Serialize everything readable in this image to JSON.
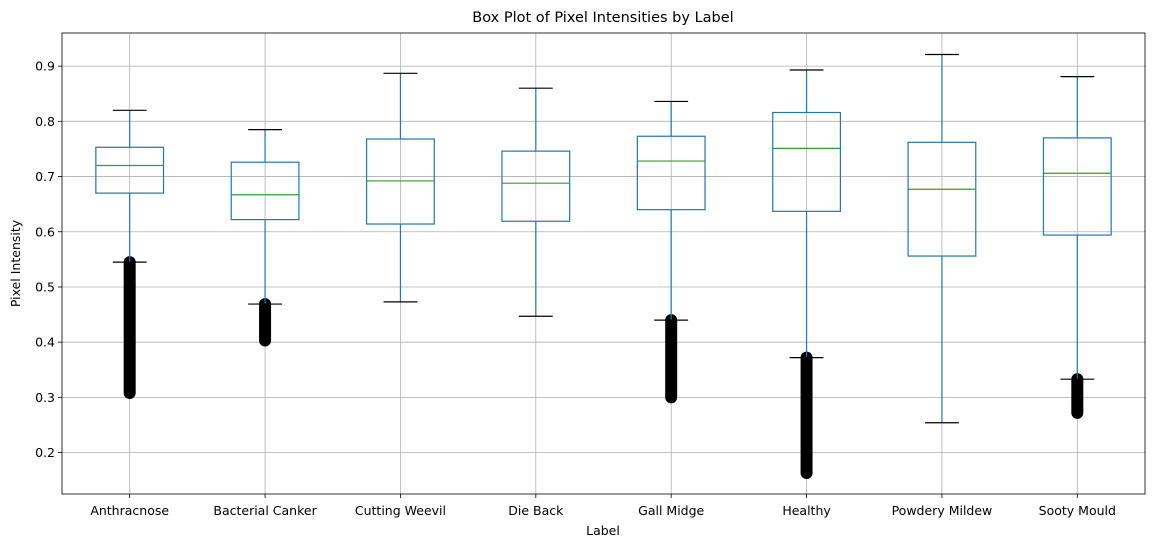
{
  "chart_data": {
    "type": "box",
    "title": "Box Plot of Pixel Intensities by Label",
    "xlabel": "Label",
    "ylabel": "Pixel Intensity",
    "ylim": [
      0.125,
      0.96
    ],
    "yticks": [
      "0.2",
      "0.3",
      "0.4",
      "0.5",
      "0.6",
      "0.7",
      "0.8",
      "0.9"
    ],
    "grid": true,
    "colors": {
      "box": "#1f77b4",
      "median": "#2ca02c",
      "cap": "#000000",
      "outlier": "#000000",
      "grid": "#b0b0b0"
    },
    "categories": [
      "Anthracnose",
      "Bacterial Canker",
      "Cutting Weevil",
      "Die Back",
      "Gall Midge",
      "Healthy",
      "Powdery Mildew",
      "Sooty Mould"
    ],
    "boxes": [
      {
        "whisker_low": 0.545,
        "q1": 0.67,
        "median": 0.72,
        "q3": 0.753,
        "whisker_high": 0.82,
        "outliers_range": [
          0.308,
          0.545
        ]
      },
      {
        "whisker_low": 0.469,
        "q1": 0.622,
        "median": 0.667,
        "q3": 0.726,
        "whisker_high": 0.785,
        "outliers_range": [
          0.403,
          0.469
        ]
      },
      {
        "whisker_low": 0.473,
        "q1": 0.614,
        "median": 0.692,
        "q3": 0.768,
        "whisker_high": 0.887,
        "outliers_range": null
      },
      {
        "whisker_low": 0.447,
        "q1": 0.619,
        "median": 0.688,
        "q3": 0.746,
        "whisker_high": 0.86,
        "outliers_range": null
      },
      {
        "whisker_low": 0.44,
        "q1": 0.64,
        "median": 0.728,
        "q3": 0.773,
        "whisker_high": 0.836,
        "outliers_range": [
          0.3,
          0.44
        ]
      },
      {
        "whisker_low": 0.372,
        "q1": 0.637,
        "median": 0.751,
        "q3": 0.816,
        "whisker_high": 0.893,
        "outliers_range": [
          0.163,
          0.372
        ]
      },
      {
        "whisker_low": 0.254,
        "q1": 0.556,
        "median": 0.677,
        "q3": 0.762,
        "whisker_high": 0.921,
        "outliers_range": null
      },
      {
        "whisker_low": 0.333,
        "q1": 0.594,
        "median": 0.706,
        "q3": 0.77,
        "whisker_high": 0.881,
        "outliers_range": [
          0.272,
          0.333
        ]
      }
    ]
  }
}
